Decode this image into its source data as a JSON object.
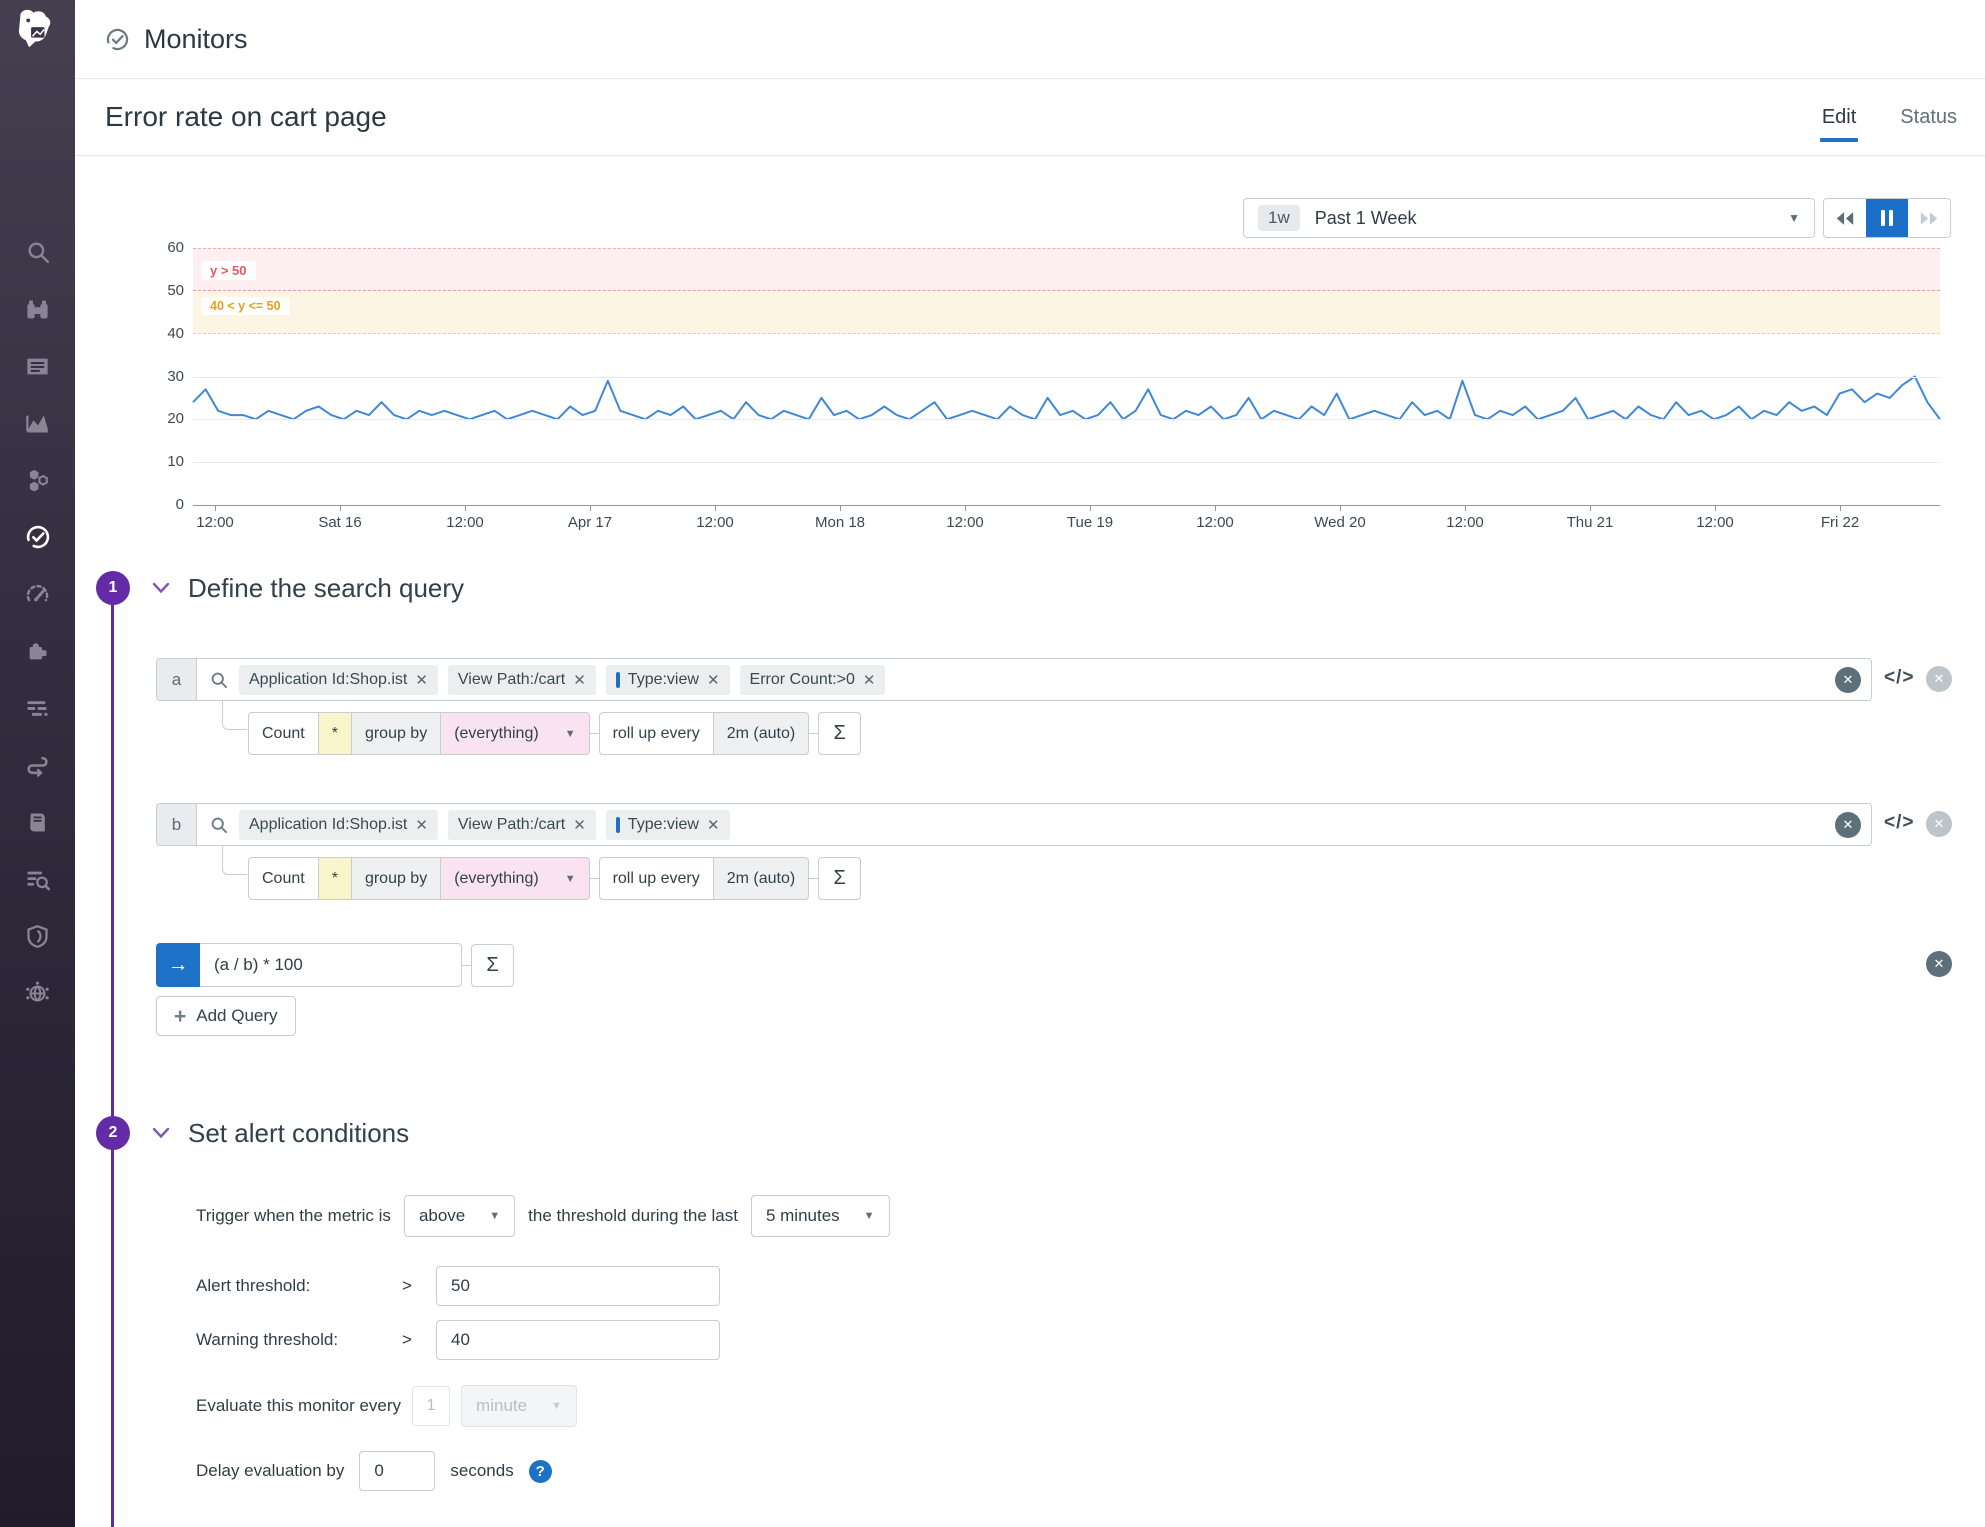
{
  "header": {
    "title": "Monitors"
  },
  "page": {
    "title": "Error rate on cart page",
    "tabs": [
      {
        "label": "Edit",
        "active": true
      },
      {
        "label": "Status",
        "active": false
      }
    ]
  },
  "timebar": {
    "badge": "1w",
    "label": "Past 1 Week"
  },
  "chart_data": {
    "type": "line",
    "title": "",
    "ylim": [
      0,
      60
    ],
    "y_ticks": [
      60,
      50,
      40,
      30,
      20,
      10,
      0
    ],
    "x_ticks": [
      "12:00",
      "Sat 16",
      "12:00",
      "Apr 17",
      "12:00",
      "Mon 18",
      "12:00",
      "Tue 19",
      "12:00",
      "Wed 20",
      "12:00",
      "Thu 21",
      "12:00",
      "Fri 22"
    ],
    "alert_zone": {
      "label": "y > 50",
      "from": 50,
      "to": 60
    },
    "warning_zone": {
      "label": "40 < y <= 50",
      "from": 40,
      "to": 50
    },
    "legend": "off",
    "series": [
      {
        "name": "(a / b) * 100",
        "color": "#3f88d8",
        "values": [
          24,
          27,
          22,
          21,
          21,
          20,
          22,
          21,
          20,
          22,
          23,
          21,
          20,
          22,
          21,
          24,
          21,
          20,
          22,
          21,
          22,
          21,
          20,
          21,
          22,
          20,
          21,
          22,
          21,
          20,
          23,
          21,
          22,
          29,
          22,
          21,
          20,
          22,
          21,
          23,
          20,
          21,
          22,
          20,
          24,
          21,
          20,
          22,
          21,
          20,
          25,
          21,
          22,
          20,
          21,
          23,
          21,
          20,
          22,
          24,
          20,
          21,
          22,
          21,
          20,
          23,
          21,
          20,
          25,
          21,
          22,
          20,
          21,
          24,
          20,
          22,
          27,
          21,
          20,
          22,
          21,
          23,
          20,
          21,
          25,
          20,
          22,
          21,
          20,
          23,
          21,
          26,
          20,
          21,
          22,
          21,
          20,
          24,
          21,
          22,
          20,
          29,
          21,
          20,
          22,
          21,
          23,
          20,
          21,
          22,
          25,
          20,
          21,
          22,
          20,
          23,
          21,
          20,
          24,
          21,
          22,
          20,
          21,
          23,
          20,
          22,
          21,
          24,
          22,
          23,
          21,
          26,
          27,
          24,
          26,
          25,
          28,
          30,
          24,
          20
        ]
      }
    ]
  },
  "sections": [
    {
      "number": "1",
      "title": "Define the search query"
    },
    {
      "number": "2",
      "title": "Set alert conditions"
    }
  ],
  "query": {
    "code_icon": "</>",
    "rows": [
      {
        "letter": "a",
        "tags": [
          {
            "label": "Application Id:Shop.ist",
            "facet": false
          },
          {
            "label": "View Path:/cart",
            "facet": false
          },
          {
            "label": "Type:view",
            "facet": true
          },
          {
            "label": "Error Count:>0",
            "facet": false
          }
        ],
        "agg": {
          "count": "Count",
          "star": "*",
          "group_by": "group by",
          "group_value": "(everything)",
          "rollup": "roll up every",
          "rollup_value": "2m (auto)",
          "sigma": "Σ"
        }
      },
      {
        "letter": "b",
        "tags": [
          {
            "label": "Application Id:Shop.ist",
            "facet": false
          },
          {
            "label": "View Path:/cart",
            "facet": false
          },
          {
            "label": "Type:view",
            "facet": true
          }
        ],
        "agg": {
          "count": "Count",
          "star": "*",
          "group_by": "group by",
          "group_value": "(everything)",
          "rollup": "roll up every",
          "rollup_value": "2m (auto)",
          "sigma": "Σ"
        }
      }
    ],
    "formula": {
      "value": "(a / b) * 100",
      "sigma": "Σ"
    },
    "add_query_label": "Add Query"
  },
  "alert": {
    "trigger": {
      "prefix": "Trigger when the metric is",
      "comparator": "above",
      "middle": "the threshold during the last",
      "window": "5 minutes"
    },
    "alert_threshold": {
      "label": "Alert threshold:",
      "op": ">",
      "value": "50"
    },
    "warning_threshold": {
      "label": "Warning threshold:",
      "op": ">",
      "value": "40"
    },
    "evaluate": {
      "prefix": "Evaluate this monitor every",
      "value": "1",
      "unit": "minute"
    },
    "delay": {
      "prefix": "Delay evaluation by",
      "value": "0",
      "suffix": "seconds"
    }
  },
  "sidebar": {
    "active": "monitors",
    "icons": [
      "datadog-logo",
      "search",
      "watchdog",
      "events",
      "dashboards",
      "infrastructure",
      "monitors",
      "metrics",
      "integrations",
      "apm",
      "synthetics",
      "notebooks",
      "log-explorer",
      "security",
      "network"
    ]
  },
  "colors": {
    "accent_blue": "#1d72c8",
    "purple": "#632ca6",
    "line_blue": "#3f88d8",
    "alert_red": "#e25964",
    "warning_orange": "#e7a11b",
    "sidebar_bg": "#3b3547"
  }
}
